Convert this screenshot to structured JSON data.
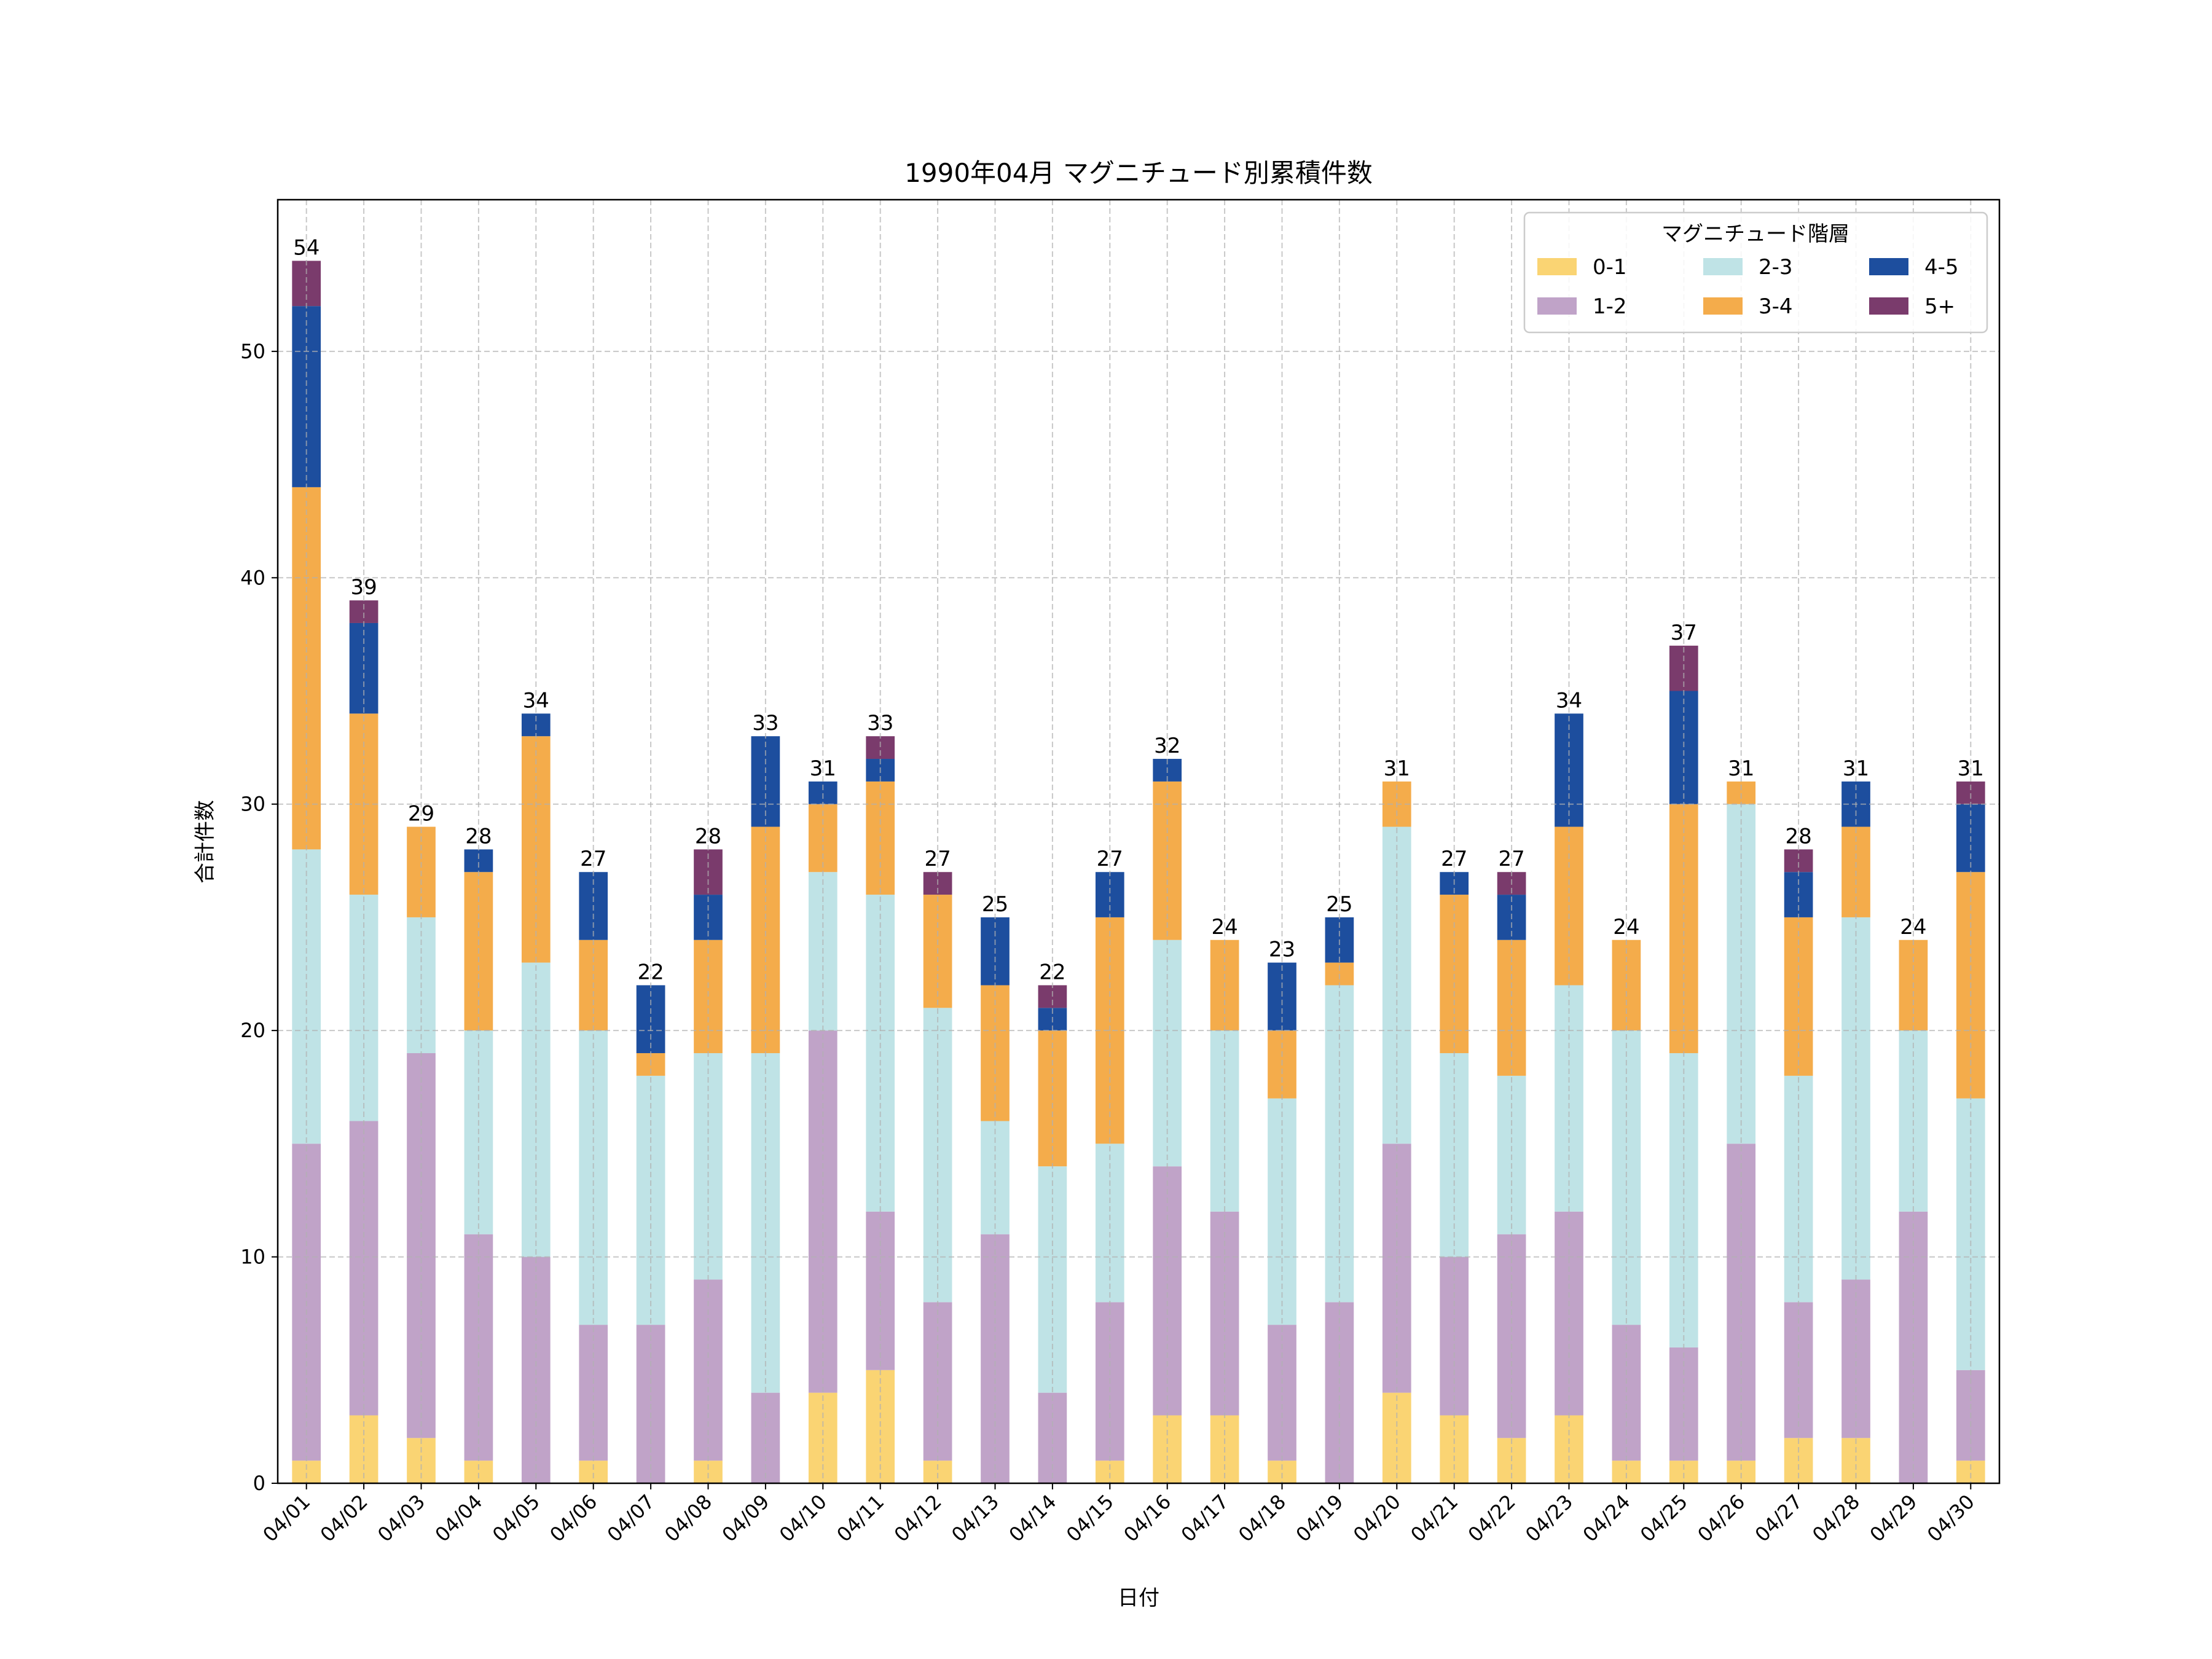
{
  "chart_data": {
    "type": "bar",
    "stacked": true,
    "title": "1990年04月 マグニチュード別累積件数",
    "xlabel": "日付",
    "ylabel": "合計件数",
    "ylim": [
      0,
      56.7
    ],
    "yticks": [
      0,
      10,
      20,
      30,
      40,
      50
    ],
    "grid": true,
    "legend": {
      "title": "マグニチュード階層",
      "placement": "top-right",
      "columns": 3
    },
    "categories": [
      "04/01",
      "04/02",
      "04/03",
      "04/04",
      "04/05",
      "04/06",
      "04/07",
      "04/08",
      "04/09",
      "04/10",
      "04/11",
      "04/12",
      "04/13",
      "04/14",
      "04/15",
      "04/16",
      "04/17",
      "04/18",
      "04/19",
      "04/20",
      "04/21",
      "04/22",
      "04/23",
      "04/24",
      "04/25",
      "04/26",
      "04/27",
      "04/28",
      "04/29",
      "04/30"
    ],
    "series": [
      {
        "name": "0-1",
        "color": "#FAD473",
        "values": [
          1,
          3,
          2,
          1,
          0,
          1,
          0,
          1,
          0,
          4,
          5,
          1,
          0,
          0,
          1,
          3,
          3,
          1,
          0,
          4,
          3,
          2,
          3,
          1,
          1,
          1,
          2,
          2,
          0,
          1
        ]
      },
      {
        "name": "1-2",
        "color": "#C0A3C8",
        "values": [
          14,
          13,
          17,
          10,
          10,
          6,
          7,
          8,
          4,
          16,
          7,
          7,
          11,
          4,
          7,
          11,
          9,
          6,
          8,
          11,
          7,
          9,
          9,
          6,
          5,
          14,
          6,
          7,
          12,
          4
        ]
      },
      {
        "name": "2-3",
        "color": "#BFE3E6",
        "values": [
          13,
          10,
          6,
          9,
          13,
          13,
          11,
          10,
          15,
          7,
          14,
          13,
          5,
          10,
          7,
          10,
          8,
          10,
          14,
          14,
          9,
          7,
          10,
          13,
          13,
          15,
          10,
          16,
          8,
          12
        ]
      },
      {
        "name": "3-4",
        "color": "#F4AC4B",
        "values": [
          16,
          8,
          4,
          7,
          10,
          4,
          1,
          5,
          10,
          3,
          5,
          5,
          6,
          6,
          10,
          7,
          4,
          3,
          1,
          2,
          7,
          6,
          7,
          4,
          11,
          1,
          7,
          4,
          4,
          10
        ]
      },
      {
        "name": "4-5",
        "color": "#1D4E9E",
        "values": [
          8,
          4,
          0,
          1,
          1,
          3,
          3,
          2,
          4,
          1,
          1,
          0,
          3,
          1,
          2,
          1,
          0,
          3,
          2,
          0,
          1,
          2,
          5,
          0,
          5,
          0,
          2,
          2,
          0,
          3
        ]
      },
      {
        "name": "5+",
        "color": "#7A3B6C",
        "values": [
          2,
          1,
          0,
          0,
          0,
          0,
          0,
          2,
          0,
          0,
          1,
          1,
          0,
          1,
          0,
          0,
          0,
          0,
          0,
          0,
          0,
          1,
          0,
          0,
          2,
          0,
          1,
          0,
          0,
          1
        ]
      }
    ],
    "totals": [
      54,
      39,
      29,
      28,
      34,
      27,
      22,
      28,
      33,
      31,
      33,
      27,
      25,
      22,
      27,
      32,
      24,
      23,
      25,
      31,
      27,
      27,
      34,
      24,
      37,
      31,
      28,
      31,
      24,
      31
    ]
  }
}
